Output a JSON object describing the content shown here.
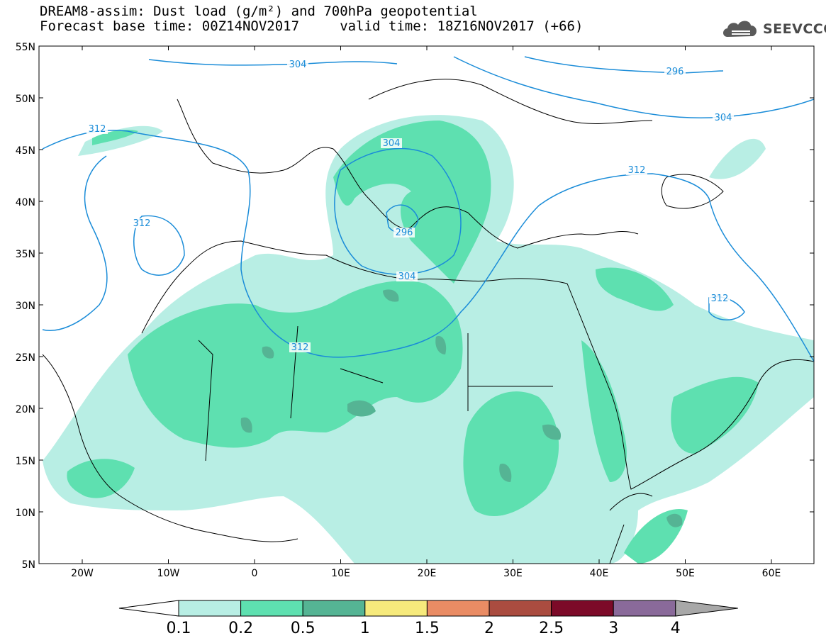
{
  "header": {
    "line1": "DREAM8-assim: Dust load (g/m²) and 700hPa geopotential",
    "line2": "Forecast base time: 00Z14NOV2017     valid time: 18Z16NOV2017 (+66)"
  },
  "logo": {
    "text": "SEEVCCC",
    "icon": "cloud-logo-icon"
  },
  "map": {
    "lon_labels": [
      "20W",
      "10W",
      "0",
      "10E",
      "20E",
      "30E",
      "40E",
      "50E",
      "60E"
    ],
    "lat_labels": [
      "55N",
      "50N",
      "45N",
      "40N",
      "35N",
      "30N",
      "25N",
      "20N",
      "15N",
      "10N",
      "5N"
    ],
    "contour_labels": [
      "304",
      "296",
      "304",
      "312",
      "312",
      "312",
      "304",
      "296",
      "304",
      "312",
      "312"
    ]
  },
  "colorbar": {
    "levels": [
      "0.1",
      "0.2",
      "0.5",
      "1",
      "1.5",
      "2",
      "2.5",
      "3",
      "4"
    ],
    "colors": [
      "#ffffff",
      "#b8eee4",
      "#5ee0b0",
      "#55b494",
      "#f6ea7c",
      "#ea8c64",
      "#aa4c40",
      "#7c0a28",
      "#8a6a9a",
      "#a8a8a8"
    ]
  }
}
